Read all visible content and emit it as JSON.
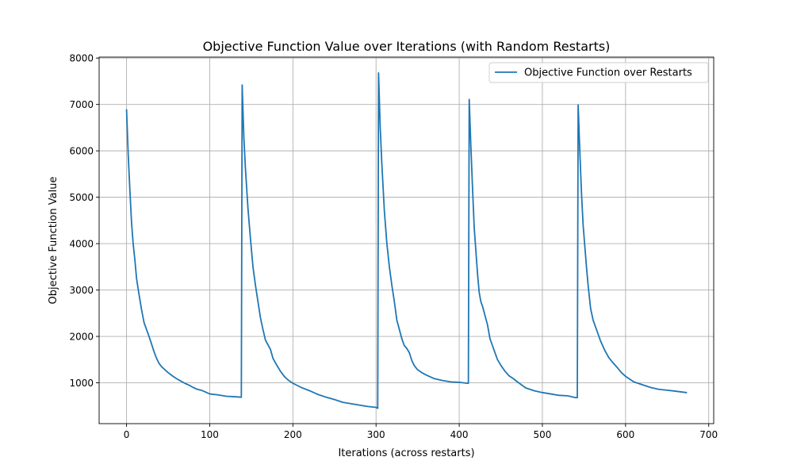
{
  "chart_data": {
    "type": "line",
    "title": "Objective Function Value over Iterations (with Random Restarts)",
    "xlabel": "Iterations (across restarts)",
    "ylabel": "Objective Function Value",
    "xlim": [
      -33,
      706
    ],
    "ylim": [
      120,
      8020
    ],
    "xticks": [
      0,
      100,
      200,
      300,
      400,
      500,
      600,
      700
    ],
    "yticks": [
      1000,
      2000,
      3000,
      4000,
      5000,
      6000,
      7000,
      8000
    ],
    "grid": true,
    "legend_position": "top-right",
    "color": "#1f77b4",
    "series": [
      {
        "name": "Objective Function over Restarts",
        "x": [
          0,
          2,
          4,
          6,
          8,
          10,
          12,
          15,
          18,
          21,
          24,
          27,
          30,
          33,
          36,
          39,
          42,
          45,
          50,
          55,
          60,
          65,
          70,
          75,
          80,
          85,
          90,
          95,
          100,
          110,
          120,
          130,
          138,
          139,
          141,
          143,
          146,
          149,
          152,
          155,
          158,
          161,
          164,
          167,
          170,
          173,
          176,
          180,
          185,
          190,
          195,
          200,
          210,
          220,
          230,
          240,
          250,
          260,
          270,
          280,
          290,
          300,
          302,
          303,
          305,
          307,
          310,
          313,
          316,
          319,
          322,
          325,
          328,
          331,
          334,
          337,
          340,
          343,
          346,
          350,
          355,
          360,
          370,
          380,
          390,
          400,
          405,
          410,
          411,
          412,
          414,
          416,
          418,
          420,
          422,
          424,
          426,
          428,
          431,
          434,
          437,
          440,
          443,
          446,
          450,
          455,
          460,
          465,
          470,
          480,
          490,
          500,
          510,
          520,
          530,
          540,
          542,
          543,
          545,
          547,
          549,
          551,
          553,
          555,
          558,
          561,
          564,
          567,
          570,
          575,
          580,
          585,
          590,
          595,
          600,
          610,
          620,
          630,
          640,
          650,
          660,
          673
        ],
        "y": [
          6880,
          5900,
          5150,
          4450,
          3980,
          3650,
          3250,
          2900,
          2580,
          2300,
          2150,
          2000,
          1840,
          1670,
          1530,
          1420,
          1350,
          1300,
          1220,
          1150,
          1090,
          1040,
          990,
          950,
          900,
          860,
          840,
          800,
          760,
          740,
          710,
          700,
          690,
          7420,
          6300,
          5600,
          4750,
          4100,
          3500,
          3100,
          2750,
          2400,
          2150,
          1920,
          1820,
          1720,
          1530,
          1400,
          1250,
          1130,
          1050,
          990,
          900,
          830,
          750,
          690,
          640,
          580,
          550,
          520,
          490,
          470,
          450,
          7680,
          6500,
          5700,
          4700,
          4000,
          3500,
          3100,
          2750,
          2350,
          2150,
          1950,
          1800,
          1740,
          1650,
          1480,
          1370,
          1280,
          1220,
          1170,
          1090,
          1050,
          1020,
          1010,
          1000,
          990,
          990,
          7110,
          6100,
          5200,
          4350,
          3850,
          3350,
          2950,
          2750,
          2650,
          2450,
          2250,
          1950,
          1800,
          1650,
          1500,
          1380,
          1250,
          1150,
          1090,
          1020,
          890,
          830,
          790,
          760,
          730,
          720,
          680,
          680,
          6990,
          6000,
          5100,
          4400,
          3950,
          3500,
          3100,
          2600,
          2350,
          2200,
          2050,
          1900,
          1700,
          1540,
          1430,
          1330,
          1220,
          1140,
          1020,
          960,
          900,
          860,
          840,
          820,
          790
        ]
      }
    ]
  }
}
